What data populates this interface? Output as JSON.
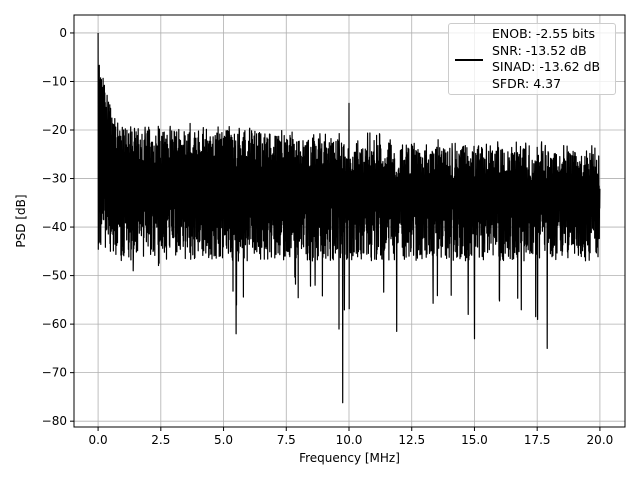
{
  "chart_data": {
    "type": "line",
    "title": "",
    "xlabel": "Frequency [MHz]",
    "ylabel": "PSD [dB]",
    "xlim": [
      -0.96,
      21.0
    ],
    "ylim": [
      -81.2,
      3.7
    ],
    "grid": true,
    "xticks": [
      0.0,
      2.5,
      5.0,
      7.5,
      10.0,
      12.5,
      15.0,
      17.5,
      20.0
    ],
    "xtick_labels": [
      "0.0",
      "2.5",
      "5.0",
      "7.5",
      "10.0",
      "12.5",
      "15.0",
      "17.5",
      "20.0"
    ],
    "yticks": [
      0,
      -10,
      -20,
      -30,
      -40,
      -50,
      -60,
      -70,
      -80
    ],
    "ytick_labels": [
      "0",
      "−10",
      "−20",
      "−30",
      "−40",
      "−50",
      "−60",
      "−70",
      "−80"
    ],
    "series": [
      {
        "name": "PSD",
        "color": "#000000",
        "envelope_x": [
          0,
          1,
          2,
          3,
          4,
          5,
          6,
          7,
          8,
          9,
          10,
          11,
          12,
          13,
          14,
          15,
          16,
          17,
          18,
          19,
          20
        ],
        "upper": [
          -12,
          -19,
          -20,
          -20,
          -20,
          -20,
          -20,
          -21,
          -21,
          -22,
          -22,
          -22,
          -23,
          -23,
          -23,
          -23,
          -24,
          -23,
          -24,
          -24,
          -25
        ],
        "lower": [
          -47,
          -50,
          -52,
          -50,
          -55,
          -55,
          -58,
          -50,
          -55,
          -55,
          -60,
          -58,
          -55,
          -56,
          -56,
          -60,
          -58,
          -58,
          -62,
          -60,
          -55
        ],
        "peaks": [
          {
            "x": 0.0,
            "y": 0.0
          },
          {
            "x": 10.0,
            "y": -14.5
          },
          {
            "x": 9.75,
            "y": -76.2
          },
          {
            "x": 17.9,
            "y": -65
          },
          {
            "x": 15.0,
            "y": -63
          },
          {
            "x": 5.5,
            "y": -62
          },
          {
            "x": 11.9,
            "y": -61.5
          },
          {
            "x": 9.6,
            "y": -61
          }
        ]
      }
    ],
    "legend": {
      "placement": "top-right",
      "entries": [
        "ENOB: -2.55 bits",
        "SNR: -13.52 dB",
        "SINAD: -13.62 dB",
        "SFDR: 4.37"
      ]
    }
  }
}
